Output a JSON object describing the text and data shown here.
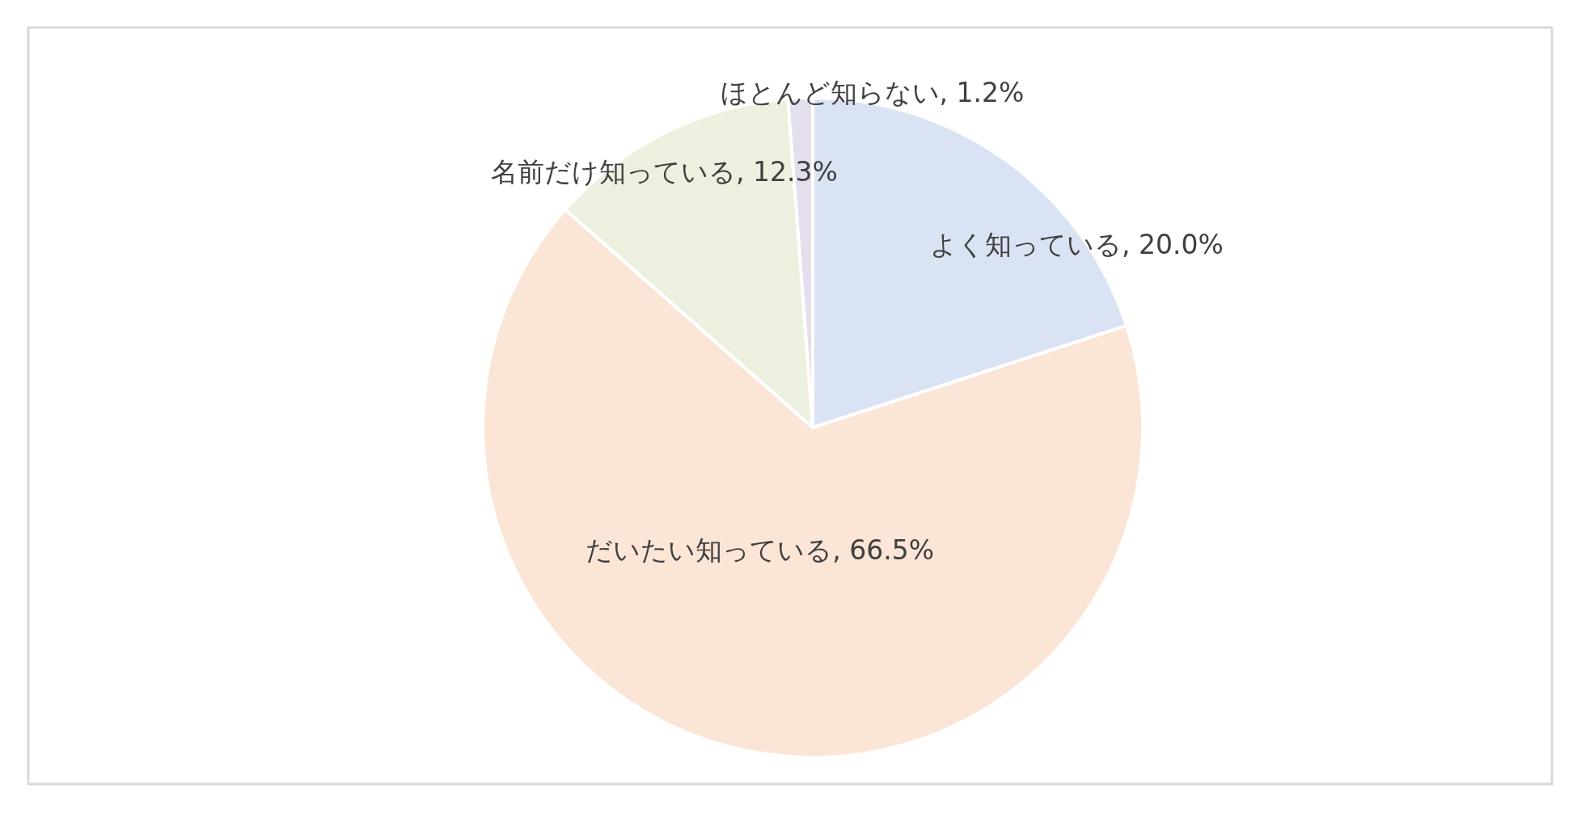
{
  "chart_data": {
    "type": "pie",
    "categories": [
      "よく知っている",
      "だいたい知っている",
      "名前だけ知っている",
      "ほとんど知らない"
    ],
    "values": [
      20.0,
      66.5,
      12.3,
      1.2
    ],
    "value_labels": [
      "20.0%",
      "66.5%",
      "12.3%",
      "1.2%"
    ],
    "colors": [
      "#dae3f3",
      "#fbe5d6",
      "#ebf1de",
      "#e4dfec"
    ]
  }
}
